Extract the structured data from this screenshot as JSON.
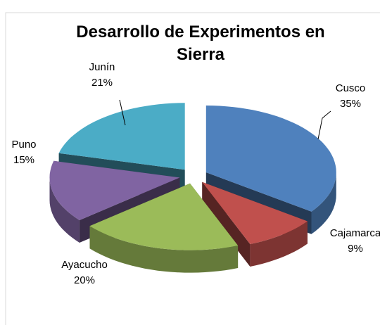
{
  "chart_data": {
    "type": "pie",
    "title": "Desarrollo de Experimentos en Sierra",
    "categories": [
      "Cusco",
      "Cajamarca",
      "Ayacucho",
      "Puno",
      "Junín"
    ],
    "values": [
      35,
      9,
      20,
      15,
      21
    ],
    "value_labels": [
      "35%",
      "9%",
      "20%",
      "15%",
      "21%"
    ],
    "colors": [
      "#4f81bd",
      "#c0504d",
      "#9bbb59",
      "#8064a2",
      "#4bacc6"
    ]
  }
}
